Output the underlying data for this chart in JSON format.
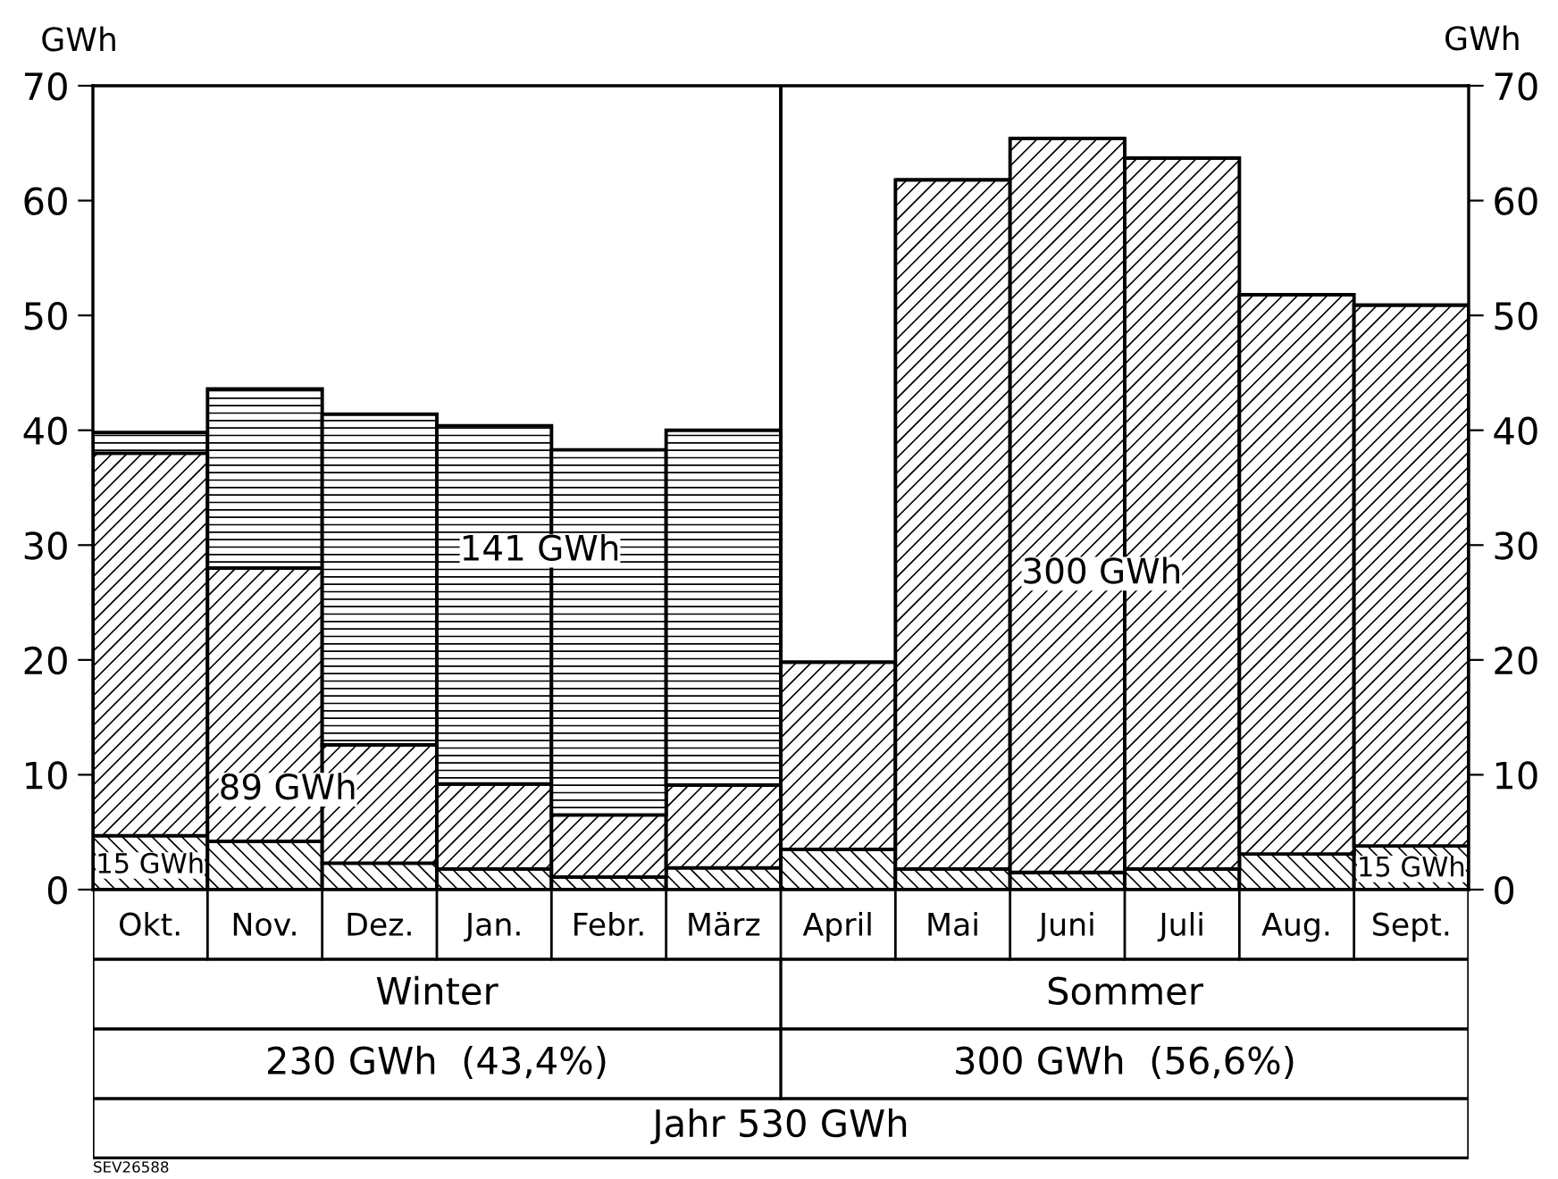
{
  "chart_data": {
    "type": "bar",
    "stacked": true,
    "categories": [
      "Okt.",
      "Nov.",
      "Dez.",
      "Jan.",
      "Febr.",
      "März",
      "April",
      "Mai",
      "Juni",
      "Juli",
      "Aug.",
      "Sept."
    ],
    "series": [
      {
        "color": "#000000",
        "values": [
          4.7,
          4.2,
          2.3,
          1.8,
          1.1,
          1.9,
          3.5,
          1.8,
          1.5,
          1.8,
          3.1,
          3.8
        ]
      },
      {
        "color": "#000000",
        "values": [
          33.3,
          23.8,
          10.3,
          7.4,
          5.4,
          7.2,
          16.3,
          60.0,
          63.9,
          61.9,
          48.7,
          47.1
        ]
      },
      {
        "color": "#000000",
        "values": [
          1.8,
          15.6,
          28.8,
          31.2,
          31.8,
          30.9,
          0,
          0,
          0,
          0,
          0,
          0
        ]
      }
    ],
    "ylabel": "GWh",
    "y2label": "GWh",
    "ylim": [
      0,
      70
    ],
    "yticks": [
      0,
      10,
      20,
      30,
      40,
      50,
      60,
      70
    ],
    "y2lim": [
      0,
      70
    ],
    "y2ticks": [
      0,
      10,
      20,
      30,
      40,
      50,
      60,
      70
    ],
    "annotations": [
      "141 GWh",
      "89 GWh",
      "15 GWh",
      "300 GWh",
      "15 GWh",
      "Winter",
      "Sommer",
      "230 GWh  (43,4%)",
      "300 GWh  (56,6%)",
      "Jahr 530 GWh",
      "SEV26588"
    ],
    "grid": false
  }
}
